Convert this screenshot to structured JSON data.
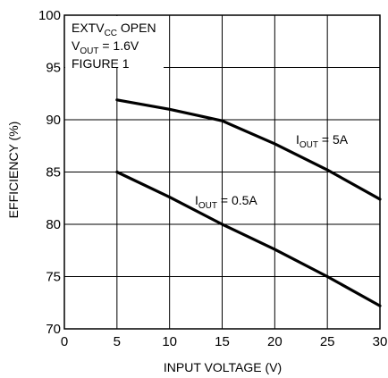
{
  "chart_data": {
    "type": "line",
    "title": "",
    "xlabel": "INPUT VOLTAGE (V)",
    "ylabel": "EFFICIENCY (%)",
    "xlim": [
      0,
      30
    ],
    "ylim": [
      70,
      100
    ],
    "x_ticks": [
      0,
      5,
      10,
      15,
      20,
      25,
      30
    ],
    "y_ticks": [
      70,
      75,
      80,
      85,
      90,
      95,
      100
    ],
    "grid": true,
    "series": [
      {
        "name": "IOUT = 5A",
        "label_main": "I",
        "label_sub": "OUT",
        "label_rest": " = 5A",
        "x": [
          5,
          10,
          15,
          20,
          25,
          30
        ],
        "y": [
          91.9,
          91.0,
          89.9,
          87.7,
          85.2,
          82.4
        ]
      },
      {
        "name": "IOUT = 0.5A",
        "label_main": "I",
        "label_sub": "OUT",
        "label_rest": " = 0.5A",
        "x": [
          5,
          10,
          15,
          20,
          25,
          30
        ],
        "y": [
          85.0,
          82.6,
          80.0,
          77.6,
          75.0,
          72.2
        ]
      }
    ],
    "annotations": [
      {
        "main": "EXTV",
        "sub": "CC",
        "rest": " OPEN"
      },
      {
        "main": "V",
        "sub": "OUT",
        "rest": " = 1.6V"
      },
      {
        "main": "FIGURE 1",
        "sub": "",
        "rest": ""
      }
    ]
  }
}
